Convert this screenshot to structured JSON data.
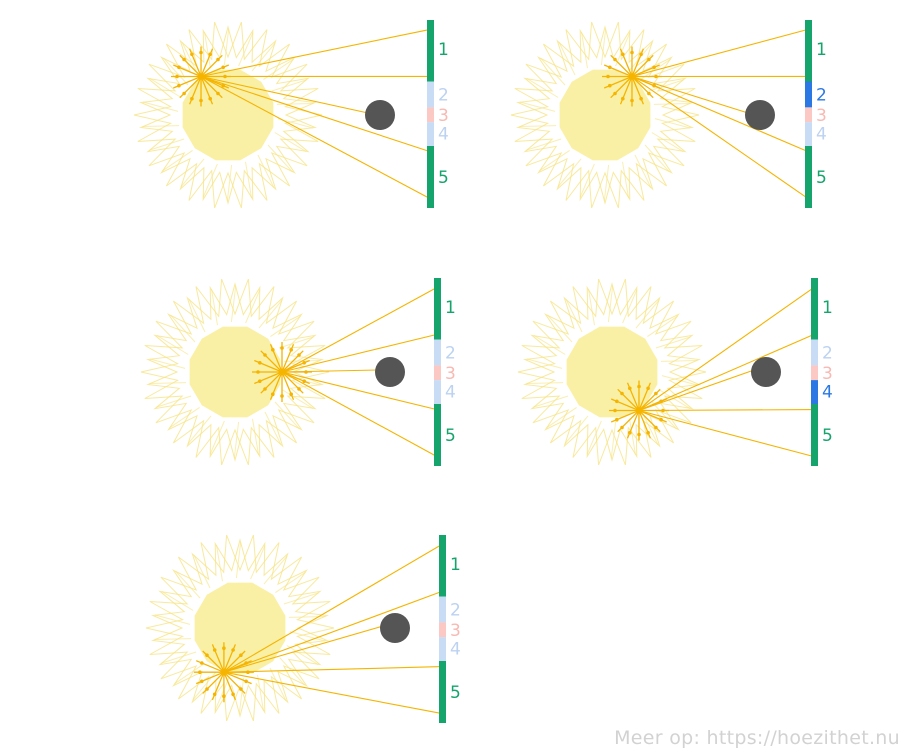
{
  "panels": [
    {
      "name": "panel-1",
      "source_dir_deg": 235,
      "active_segment": null
    },
    {
      "name": "panel-2",
      "source_dir_deg": 305,
      "active_segment": "2"
    },
    {
      "name": "panel-3",
      "source_dir_deg": 0,
      "active_segment": null
    },
    {
      "name": "panel-4",
      "source_dir_deg": 55,
      "active_segment": "4"
    },
    {
      "name": "panel-5",
      "source_dir_deg": 110,
      "active_segment": null
    }
  ],
  "screen_segments": [
    {
      "label": "1",
      "kind": "full"
    },
    {
      "label": "2",
      "kind": "penumbra"
    },
    {
      "label": "3",
      "kind": "umbra"
    },
    {
      "label": "4",
      "kind": "penumbra"
    },
    {
      "label": "5",
      "kind": "full"
    }
  ],
  "colors": {
    "sun_core": "#faf0a5",
    "sun_glow": "#f5e27c",
    "ray": "#f5b400",
    "object": "#555555",
    "full_light": "#14a46c",
    "penumbra": "#c9dcf5",
    "penumbra_label": "#bcd2f1",
    "umbra": "#fbc8c3",
    "umbra_label": "#f8b9b2",
    "active": "#2b78e4"
  },
  "footer": {
    "credit": "Meer op: https://hoezithet.nu"
  }
}
